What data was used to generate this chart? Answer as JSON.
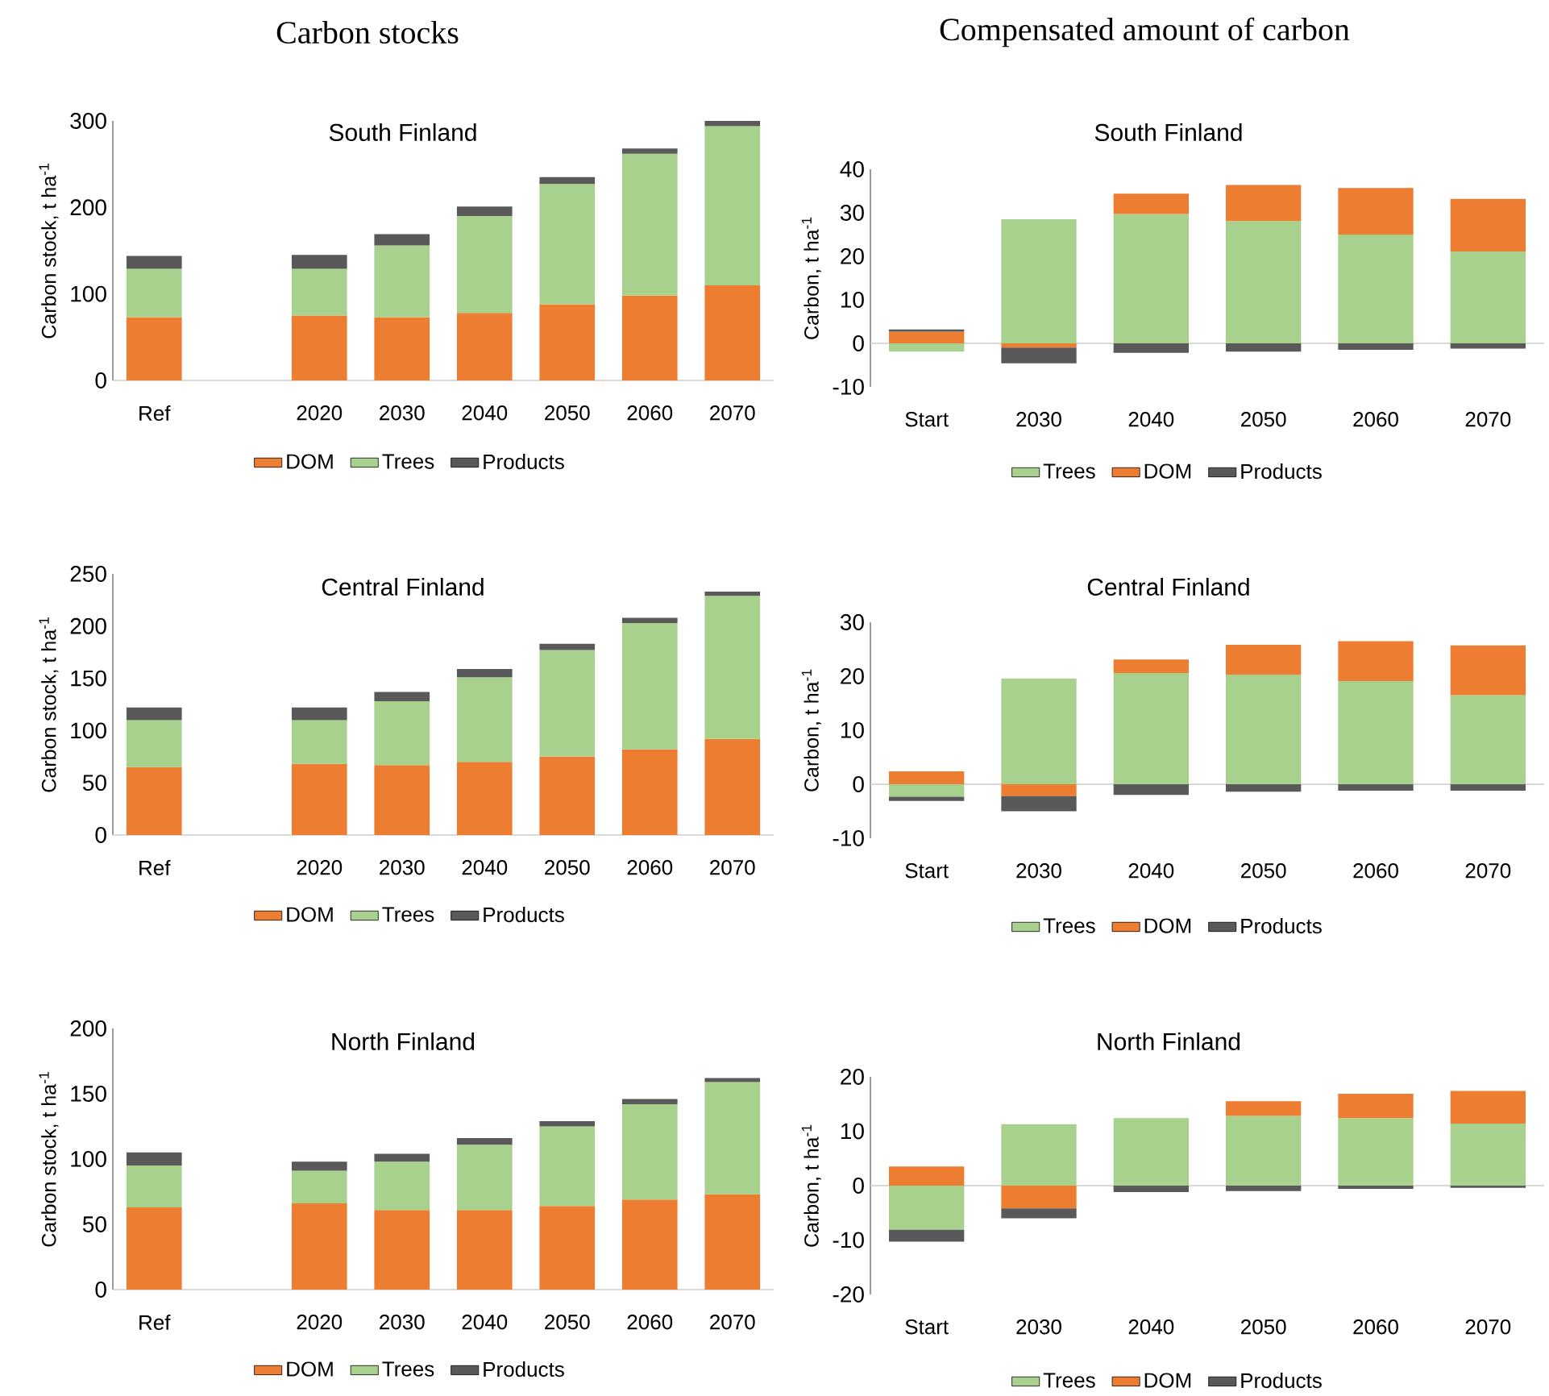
{
  "chart_data": [
    {
      "type": "bar",
      "stacked": true,
      "title": "Carbon stocks",
      "subtitle": "South Finland",
      "ylabel": "Carbon stock, t ha$^{-1}$",
      "categories": [
        "Ref",
        null,
        "2020",
        "2030",
        "2040",
        "2050",
        "2060",
        "2070"
      ],
      "ylim": [
        0,
        300
      ],
      "yticks": [
        0,
        100,
        200,
        300
      ],
      "legend": "bottom",
      "series": [
        {
          "name": "DOM",
          "color": "#ed7d31",
          "values": [
            73,
            null,
            75,
            73,
            78,
            88,
            98,
            110
          ]
        },
        {
          "name": "Trees",
          "color": "#a9d18e",
          "values": [
            56,
            null,
            54,
            83,
            112,
            139,
            164,
            184
          ]
        },
        {
          "name": "Products",
          "color": "#595959",
          "values": [
            15,
            null,
            16,
            13,
            11,
            8,
            6,
            6
          ]
        }
      ]
    },
    {
      "type": "bar",
      "stacked": true,
      "title": "Compensated amount of carbon",
      "subtitle": "South Finland",
      "ylabel": "Carbon, t ha$^{-1}$",
      "categories": [
        "Start",
        "2030",
        "2040",
        "2050",
        "2060",
        "2070"
      ],
      "ylim": [
        -10,
        40
      ],
      "yticks": [
        -10,
        0,
        10,
        20,
        30,
        40
      ],
      "legend": "bottom",
      "series": [
        {
          "name": "Trees",
          "color": "#a9d18e",
          "values": [
            -1.9,
            28.5,
            29.7,
            28.1,
            25.0,
            21.1
          ]
        },
        {
          "name": "DOM",
          "color": "#ed7d31",
          "values": [
            2.7,
            -1.0,
            4.7,
            8.3,
            10.7,
            12.1
          ]
        },
        {
          "name": "Products",
          "color": "#595959",
          "values": [
            0.5,
            -3.6,
            -2.2,
            -1.9,
            -1.5,
            -1.2
          ]
        }
      ]
    },
    {
      "type": "bar",
      "stacked": true,
      "title": "Central Finland",
      "ylabel": "Carbon stock, t ha$^{-1}$",
      "categories": [
        "Ref",
        null,
        "2020",
        "2030",
        "2040",
        "2050",
        "2060",
        "2070"
      ],
      "ylim": [
        0,
        250
      ],
      "yticks": [
        0,
        50,
        100,
        150,
        200,
        250
      ],
      "legend": "bottom",
      "series": [
        {
          "name": "DOM",
          "color": "#ed7d31",
          "values": [
            65,
            null,
            68,
            67,
            70,
            75,
            82,
            92
          ]
        },
        {
          "name": "Trees",
          "color": "#a9d18e",
          "values": [
            45,
            null,
            42,
            61,
            81,
            102,
            121,
            137
          ]
        },
        {
          "name": "Products",
          "color": "#595959",
          "values": [
            12,
            null,
            12,
            9,
            8,
            6,
            5,
            4
          ]
        }
      ]
    },
    {
      "type": "bar",
      "stacked": true,
      "title": "Central Finland",
      "ylabel": "Carbon, t ha$^{-1}$",
      "categories": [
        "Start",
        "2030",
        "2040",
        "2050",
        "2060",
        "2070"
      ],
      "ylim": [
        -10,
        30
      ],
      "yticks": [
        -10,
        0,
        10,
        20,
        30
      ],
      "legend": "bottom",
      "series": [
        {
          "name": "Trees",
          "color": "#a9d18e",
          "values": [
            -2.3,
            19.6,
            20.6,
            20.3,
            19.1,
            16.5
          ]
        },
        {
          "name": "DOM",
          "color": "#ed7d31",
          "values": [
            2.4,
            -2.2,
            2.5,
            5.5,
            7.4,
            9.2
          ]
        },
        {
          "name": "Products",
          "color": "#595959",
          "values": [
            -0.8,
            -2.8,
            -2.0,
            -1.4,
            -1.2,
            -1.2
          ]
        }
      ]
    },
    {
      "type": "bar",
      "stacked": true,
      "title": "North Finland",
      "ylabel": "Carbon stock, t ha$^{-1}$",
      "categories": [
        "Ref",
        null,
        "2020",
        "2030",
        "2040",
        "2050",
        "2060",
        "2070"
      ],
      "ylim": [
        0,
        200
      ],
      "yticks": [
        0,
        50,
        100,
        150,
        200
      ],
      "legend": "bottom",
      "series": [
        {
          "name": "DOM",
          "color": "#ed7d31",
          "values": [
            63,
            null,
            66,
            61,
            61,
            64,
            69,
            73
          ]
        },
        {
          "name": "Trees",
          "color": "#a9d18e",
          "values": [
            32,
            null,
            25,
            37,
            50,
            61,
            73,
            86
          ]
        },
        {
          "name": "Products",
          "color": "#595959",
          "values": [
            10,
            null,
            7,
            6,
            5,
            4,
            4,
            3
          ]
        }
      ]
    },
    {
      "type": "bar",
      "stacked": true,
      "title": "North Finland",
      "ylabel": "Carbon, t ha$^{-1}$",
      "categories": [
        "Start",
        "2030",
        "2040",
        "2050",
        "2060",
        "2070"
      ],
      "ylim": [
        -20,
        20
      ],
      "yticks": [
        -20,
        -10,
        0,
        10,
        20
      ],
      "legend": "bottom",
      "series": [
        {
          "name": "Trees",
          "color": "#a9d18e",
          "values": [
            -8.1,
            11.3,
            12.4,
            12.8,
            12.4,
            11.4
          ]
        },
        {
          "name": "DOM",
          "color": "#ed7d31",
          "values": [
            3.5,
            -4.2,
            0,
            2.7,
            4.5,
            6.0
          ]
        },
        {
          "name": "Products",
          "color": "#595959",
          "values": [
            -2.2,
            -1.8,
            -1.2,
            -1.0,
            -0.6,
            -0.4
          ]
        }
      ]
    }
  ]
}
